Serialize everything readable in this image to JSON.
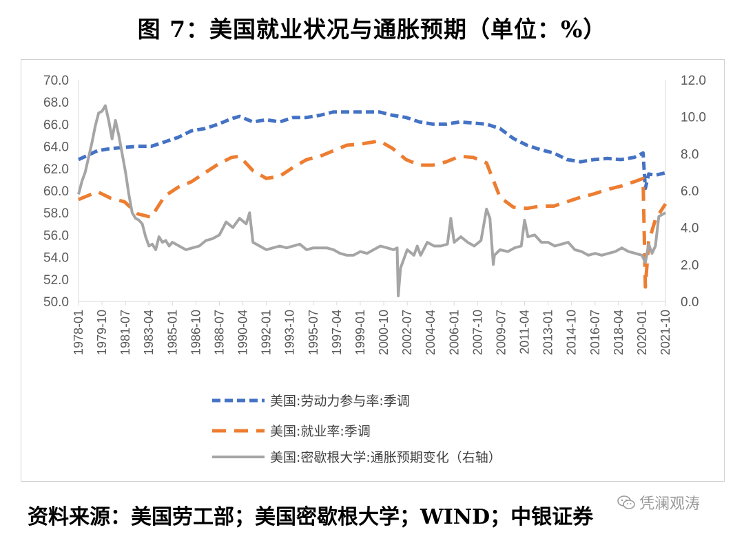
{
  "title": "图 7：美国就业状况与通胀预期（单位：%）",
  "source": "资料来源：美国劳工部；美国密歇根大学；WIND；中银证券",
  "watermark": "凭澜观涛",
  "colors": {
    "lfpr": "#4472C4",
    "emp": "#ED7D31",
    "infl": "#A5A5A5"
  },
  "chart_data": {
    "type": "line",
    "title": "",
    "xlabel": "",
    "ylabel": "",
    "ylim": [
      50,
      70
    ],
    "y2lim": [
      0,
      12
    ],
    "ytick_labels": [
      "50.0",
      "52.0",
      "54.0",
      "56.0",
      "58.0",
      "60.0",
      "62.0",
      "64.0",
      "66.0",
      "68.0",
      "70.0"
    ],
    "y2tick_labels": [
      "0.0",
      "2.0",
      "4.0",
      "6.0",
      "8.0",
      "10.0",
      "12.0"
    ],
    "xlim": [
      "1978-01",
      "2021-10"
    ],
    "xtick_labels": [
      "1978-01",
      "1979-10",
      "1981-07",
      "1983-04",
      "1985-01",
      "1986-10",
      "1988-07",
      "1990-04",
      "1992-01",
      "1993-10",
      "1995-07",
      "1997-04",
      "1999-01",
      "2000-10",
      "2002-07",
      "2004-04",
      "2006-01",
      "2007-10",
      "2009-07",
      "2011-04",
      "2013-01",
      "2014-10",
      "2016-07",
      "2018-04",
      "2020-01",
      "2021-10"
    ],
    "legend_placement": "bottom",
    "series": [
      {
        "name": "美国:劳动力参与率:季调",
        "axis": "left",
        "style": "dashed",
        "x": [
          "1978-01",
          "1979-06",
          "1980-06",
          "1981-06",
          "1982-06",
          "1983-06",
          "1984-06",
          "1985-06",
          "1986-06",
          "1987-06",
          "1988-06",
          "1989-06",
          "1990-01",
          "1991-01",
          "1992-01",
          "1993-01",
          "1994-01",
          "1995-01",
          "1996-01",
          "1997-01",
          "1998-01",
          "1999-01",
          "2000-01",
          "2000-06",
          "2001-06",
          "2002-06",
          "2003-06",
          "2004-06",
          "2005-06",
          "2006-06",
          "2007-06",
          "2008-06",
          "2009-06",
          "2010-06",
          "2011-06",
          "2012-06",
          "2013-06",
          "2014-06",
          "2015-06",
          "2016-06",
          "2017-06",
          "2018-06",
          "2019-06",
          "2020-02",
          "2020-04",
          "2020-07",
          "2021-01",
          "2021-10"
        ],
        "values": [
          62.8,
          63.6,
          63.8,
          63.9,
          64.0,
          64.0,
          64.4,
          64.8,
          65.4,
          65.6,
          66.0,
          66.5,
          66.7,
          66.2,
          66.4,
          66.2,
          66.6,
          66.6,
          66.8,
          67.1,
          67.1,
          67.1,
          67.1,
          67.1,
          66.8,
          66.6,
          66.2,
          66.0,
          66.0,
          66.2,
          66.1,
          66.0,
          65.6,
          64.7,
          64.1,
          63.7,
          63.4,
          62.8,
          62.6,
          62.8,
          62.9,
          62.8,
          63.0,
          63.4,
          60.2,
          61.5,
          61.4,
          61.6
        ]
      },
      {
        "name": "美国:就业率:季调",
        "axis": "left",
        "style": "dashed",
        "x": [
          "1978-01",
          "1979-06",
          "1980-06",
          "1981-06",
          "1982-06",
          "1983-06",
          "1984-06",
          "1985-06",
          "1986-06",
          "1987-06",
          "1988-06",
          "1989-06",
          "1990-01",
          "1991-01",
          "1992-01",
          "1993-01",
          "1994-01",
          "1995-01",
          "1996-01",
          "1997-01",
          "1998-01",
          "1999-01",
          "2000-01",
          "2000-06",
          "2001-06",
          "2002-06",
          "2003-06",
          "2004-06",
          "2005-06",
          "2006-06",
          "2007-06",
          "2008-06",
          "2009-06",
          "2010-06",
          "2011-06",
          "2012-06",
          "2013-06",
          "2014-06",
          "2015-06",
          "2016-06",
          "2017-06",
          "2018-06",
          "2019-06",
          "2020-02",
          "2020-04",
          "2020-07",
          "2021-01",
          "2021-10"
        ],
        "values": [
          59.2,
          59.9,
          59.3,
          59.0,
          57.9,
          57.6,
          59.5,
          60.3,
          60.8,
          61.6,
          62.4,
          63.0,
          63.1,
          61.8,
          61.1,
          61.3,
          62.1,
          62.8,
          63.1,
          63.6,
          64.1,
          64.2,
          64.4,
          64.5,
          63.8,
          62.8,
          62.3,
          62.3,
          62.6,
          63.1,
          63.0,
          62.5,
          59.4,
          58.5,
          58.4,
          58.6,
          58.6,
          59.0,
          59.4,
          59.7,
          60.1,
          60.4,
          60.8,
          61.1,
          51.3,
          55.4,
          57.4,
          58.8
        ]
      },
      {
        "name": "美国:密歇根大学:通胀预期变化（右轴）",
        "axis": "right",
        "style": "solid",
        "x": [
          "1978-01",
          "1978-04",
          "1978-07",
          "1978-10",
          "1979-01",
          "1979-04",
          "1979-07",
          "1979-10",
          "1980-01",
          "1980-04",
          "1980-07",
          "1980-10",
          "1981-01",
          "1981-04",
          "1981-07",
          "1981-10",
          "1982-01",
          "1982-04",
          "1982-07",
          "1982-10",
          "1983-01",
          "1983-04",
          "1983-07",
          "1983-10",
          "1984-01",
          "1984-04",
          "1984-07",
          "1984-10",
          "1985-01",
          "1985-07",
          "1986-01",
          "1986-07",
          "1987-01",
          "1987-07",
          "1988-01",
          "1988-07",
          "1989-01",
          "1989-07",
          "1990-01",
          "1990-07",
          "1990-10",
          "1991-01",
          "1991-07",
          "1992-01",
          "1992-07",
          "1993-01",
          "1993-07",
          "1994-01",
          "1994-07",
          "1995-01",
          "1995-07",
          "1996-01",
          "1996-07",
          "1997-01",
          "1997-07",
          "1998-01",
          "1998-07",
          "1999-01",
          "1999-07",
          "2000-01",
          "2000-07",
          "2001-01",
          "2001-07",
          "2001-10",
          "2001-11",
          "2002-01",
          "2002-07",
          "2003-01",
          "2003-04",
          "2003-07",
          "2004-01",
          "2004-07",
          "2005-01",
          "2005-07",
          "2005-10",
          "2006-01",
          "2006-07",
          "2007-01",
          "2007-07",
          "2008-01",
          "2008-06",
          "2008-09",
          "2008-12",
          "2009-01",
          "2009-06",
          "2010-01",
          "2010-07",
          "2011-01",
          "2011-04",
          "2011-07",
          "2012-01",
          "2012-07",
          "2013-01",
          "2013-07",
          "2014-01",
          "2014-07",
          "2015-01",
          "2015-07",
          "2016-01",
          "2016-07",
          "2017-01",
          "2017-07",
          "2018-01",
          "2018-07",
          "2019-01",
          "2019-07",
          "2020-01",
          "2020-04",
          "2020-07",
          "2020-10",
          "2021-01",
          "2021-04",
          "2021-07",
          "2021-10"
        ],
        "values": [
          5.8,
          6.5,
          7.0,
          7.8,
          8.6,
          9.5,
          10.2,
          10.3,
          10.6,
          9.8,
          8.8,
          9.8,
          9.0,
          8.0,
          7.0,
          5.8,
          4.8,
          4.5,
          4.4,
          4.2,
          3.5,
          3.0,
          3.1,
          2.8,
          3.5,
          3.2,
          3.3,
          3.0,
          3.2,
          3.0,
          2.8,
          2.9,
          3.0,
          3.3,
          3.4,
          3.6,
          4.3,
          4.0,
          4.5,
          4.2,
          4.8,
          3.2,
          3.0,
          2.8,
          2.9,
          3.0,
          2.9,
          3.0,
          3.1,
          2.8,
          2.9,
          2.9,
          2.9,
          2.8,
          2.6,
          2.5,
          2.5,
          2.7,
          2.6,
          2.8,
          3.0,
          2.9,
          2.8,
          2.9,
          0.3,
          1.8,
          2.8,
          2.5,
          3.0,
          2.5,
          3.2,
          3.0,
          3.0,
          3.1,
          4.5,
          3.2,
          3.5,
          3.2,
          3.0,
          3.3,
          5.0,
          4.5,
          2.0,
          2.5,
          2.8,
          2.7,
          2.9,
          3.0,
          4.4,
          3.5,
          3.6,
          3.2,
          3.2,
          3.0,
          3.1,
          3.2,
          2.8,
          2.7,
          2.5,
          2.6,
          2.5,
          2.6,
          2.7,
          2.9,
          2.7,
          2.6,
          2.5,
          2.1,
          3.1,
          2.6,
          3.0,
          4.6,
          4.7,
          4.8
        ]
      }
    ]
  }
}
